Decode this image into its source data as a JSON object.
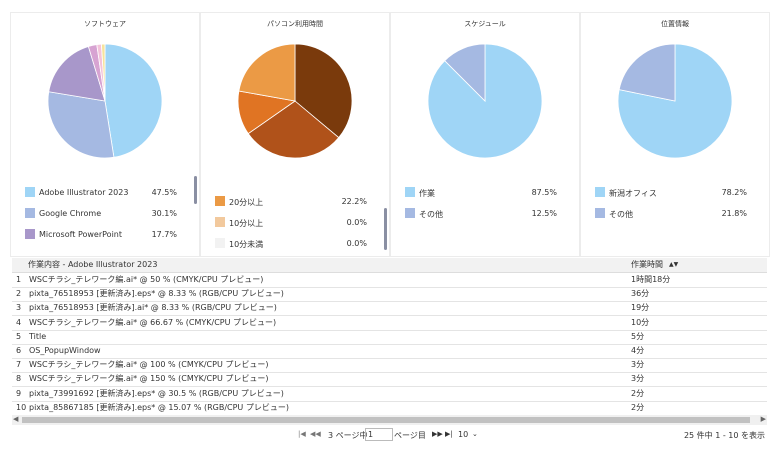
{
  "panels": [
    {
      "title": "ソフトウェア",
      "pie": {
        "names": [
          "Adobe Illustrator 2023",
          "Google Chrome",
          "Microsoft PowerPoint",
          null,
          null,
          null
        ],
        "values": [
          47.5,
          30.1,
          17.7,
          2.4,
          1.3,
          1.0
        ],
        "value_labels": [
          "47.5%",
          "30.1%",
          "17.7%",
          null,
          null,
          null
        ],
        "colors": [
          "#9fd5f6",
          "#a5b9e2",
          "#a897ca",
          "#d7a3d2",
          "#f3c3da",
          "#f6e39c"
        ]
      }
    },
    {
      "title": "パソコン利用時間",
      "pie": {
        "names": [
          null,
          null,
          null,
          "20分以上",
          "10分以上",
          "10分未満"
        ],
        "values": [
          36.1,
          29.2,
          12.5,
          22.2,
          0.0,
          0.0
        ],
        "value_labels": [
          null,
          null,
          null,
          "22.2%",
          "0.0%",
          "0.0%"
        ],
        "colors": [
          "#7a3a0c",
          "#b0521a",
          "#e07423",
          "#eb9a45",
          "#f2c99d",
          "#f2f2f2"
        ]
      }
    },
    {
      "title": "スケジュール",
      "pie": {
        "names": [
          "作業",
          "その他"
        ],
        "values": [
          87.5,
          12.5
        ],
        "value_labels": [
          "87.5%",
          "12.5%"
        ],
        "colors": [
          "#9fd5f6",
          "#a5b9e2"
        ]
      }
    },
    {
      "title": "位置情報",
      "pie": {
        "names": [
          "新潟オフィス",
          "その他"
        ],
        "values": [
          78.2,
          21.8
        ],
        "value_labels": [
          "78.2%",
          "21.8%"
        ],
        "colors": [
          "#9fd5f6",
          "#a5b9e2"
        ]
      }
    }
  ],
  "table": {
    "headers": [
      "作業内容 - Adobe Illustrator 2023",
      "作業時間"
    ],
    "rows": [
      [
        1,
        "WSCチラシ_テレワーク編.ai* @ 50 % (CMYK/CPU プレビュー)",
        "1時間18分"
      ],
      [
        2,
        "pixta_76518953 [更新済み].eps* @ 8.33 % (RGB/CPU プレビュー)",
        "36分"
      ],
      [
        3,
        "pixta_76518953 [更新済み].ai* @ 8.33 % (RGB/CPU プレビュー)",
        "19分"
      ],
      [
        4,
        "WSCチラシ_テレワーク編.ai* @ 66.67 % (CMYK/CPU プレビュー)",
        "10分"
      ],
      [
        5,
        "Title",
        "5分"
      ],
      [
        6,
        "OS_PopupWindow",
        "4分"
      ],
      [
        7,
        "WSCチラシ_テレワーク編.ai* @ 100 % (CMYK/CPU プレビュー)",
        "3分"
      ],
      [
        8,
        "WSCチラシ_テレワーク編.ai* @ 150 % (CMYK/CPU プレビュー)",
        "3分"
      ],
      [
        9,
        "pixta_73991692 [更新済み].eps* @ 30.5 % (RGB/CPU プレビュー)",
        "2分"
      ],
      [
        10,
        "pixta_85867185 [更新済み].eps* @ 15.07 % (RGB/CPU プレビュー)",
        "2分"
      ]
    ]
  },
  "pager": {
    "pages": "3 ページ中",
    "page": "1",
    "page_suffix": "ページ目",
    "per_page": "10",
    "summary": "25 件中 1 - 10 を表示"
  }
}
